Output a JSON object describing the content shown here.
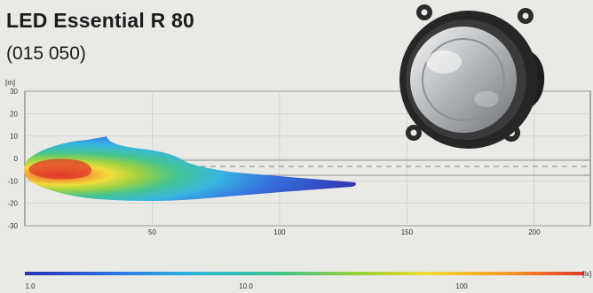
{
  "product": {
    "title": "LED Essential R 80",
    "code": "(015 050)"
  },
  "chart": {
    "y_unit": "[m]",
    "legend_unit": "[lx]",
    "colors": {
      "background": "#e9eae6",
      "grid": "#c8cac6",
      "axis": "#6a6a6a",
      "cutoff_line": "#8c8c8c",
      "dashed_center": "#9a9a9a"
    }
  },
  "chart_data": {
    "type": "heatmap",
    "title": "",
    "xlabel": "",
    "ylabel": "[m]",
    "x_ticks": [
      50,
      100,
      150,
      200
    ],
    "y_ticks": [
      30,
      20,
      10,
      0,
      -10,
      -20,
      -30
    ],
    "xlim": [
      0,
      222
    ],
    "ylim": [
      -30,
      30
    ],
    "grid": true,
    "legend": {
      "position": "bottom",
      "scale": "log",
      "unit": "[lx]",
      "tick_labels": [
        "1.0",
        "10.0",
        "100"
      ],
      "colors": [
        "#2a2fb4",
        "#2d6fe0",
        "#2fb3e0",
        "#3cc28c",
        "#9ad13a",
        "#f1dc33",
        "#f49a2a",
        "#e2372a"
      ]
    },
    "beam_extent_m": {
      "x_max": 132,
      "y_max": 13,
      "y_min": -11
    }
  }
}
